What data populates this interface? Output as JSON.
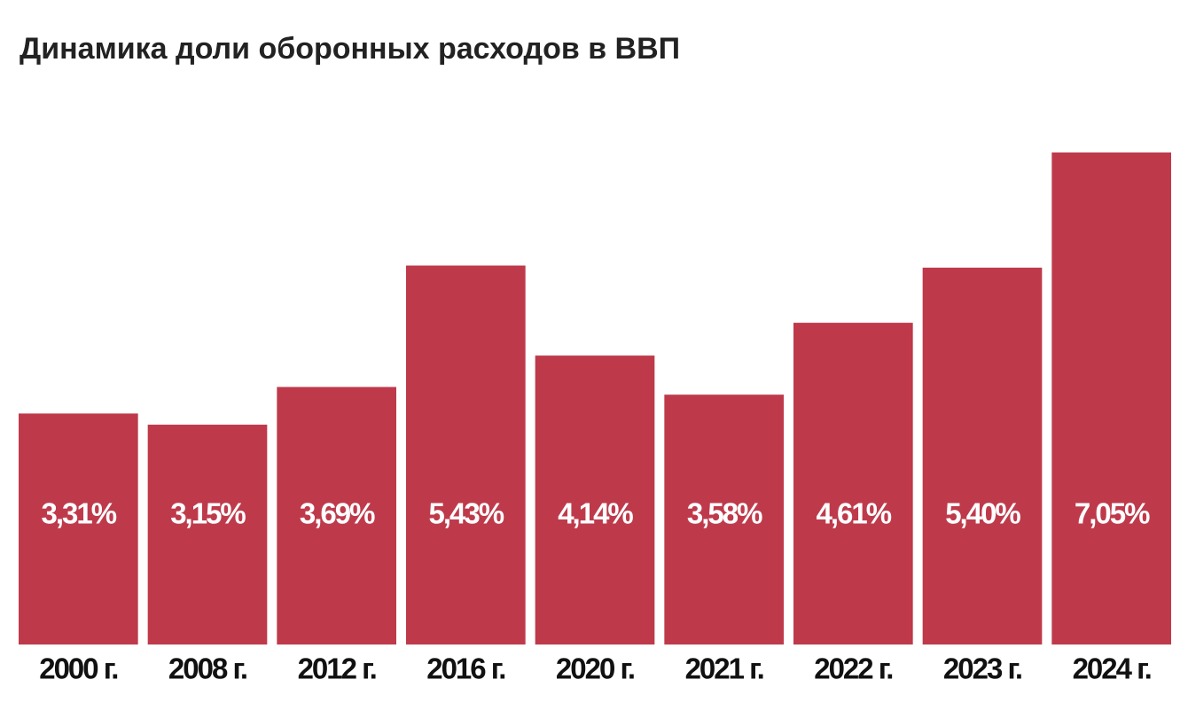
{
  "chart_data": {
    "type": "bar",
    "title": "Динамика доли оборонных расходов в ВВП",
    "categories": [
      "2000 г.",
      "2008 г.",
      "2012 г.",
      "2016 г.",
      "2020 г.",
      "2021 г.",
      "2022 г.",
      "2023 г.",
      "2024 г."
    ],
    "values": [
      3.31,
      3.15,
      3.69,
      5.43,
      4.14,
      3.58,
      4.61,
      5.4,
      7.05
    ],
    "value_labels": [
      "3,31%",
      "3,15%",
      "3,69%",
      "5,43%",
      "4,14%",
      "3,58%",
      "4,61%",
      "5,40%",
      "7,05%"
    ],
    "color": "#be3a4b"
  }
}
